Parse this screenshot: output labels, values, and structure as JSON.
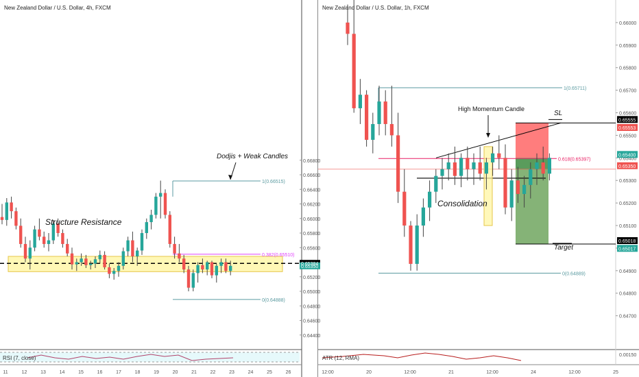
{
  "chart_data": [
    {
      "type": "candlestick",
      "title": "New Zealand Dollar / U.S. Dollar, 4h, FXCM",
      "ylim": [
        0.642,
        0.69
      ],
      "yticks": [
        "0.66800",
        "0.66600",
        "0.66400",
        "0.66200",
        "0.66000",
        "0.65800",
        "0.65600",
        "0.65400",
        "0.65200",
        "0.65000",
        "0.64800",
        "0.64600",
        "0.64400"
      ],
      "ytick_values": [
        0.668,
        0.666,
        0.664,
        0.662,
        0.66,
        0.658,
        0.656,
        0.654,
        0.652,
        0.65,
        0.648,
        0.646,
        0.644
      ],
      "x_labels": [
        "11",
        "12",
        "13",
        "14",
        "15",
        "16",
        "17",
        "18",
        "19",
        "20",
        "21",
        "22",
        "23",
        "24",
        "25",
        "26"
      ],
      "price_badges": [
        {
          "label": "0.65384",
          "value": 0.65384,
          "color": "#000000"
        },
        {
          "label": "0.65350",
          "value": 0.6535,
          "color": "#26a69a"
        }
      ],
      "fib": [
        {
          "label": "1(0.66515)",
          "value": 0.66515,
          "color": "#5a9aa0"
        },
        {
          "label": "0.382(0.65510)",
          "value": 0.6551,
          "color": "#e040fb"
        },
        {
          "label": "0(0.64888)",
          "value": 0.64888,
          "color": "#5a9aa0"
        }
      ],
      "zone": {
        "top": 0.6548,
        "bottom": 0.6527,
        "color": "#fff59d"
      },
      "level": 0.65384,
      "annotations": [
        "Dodjis + Weak Candles",
        "Structure Resistance"
      ],
      "indicator": "RSI (7, close)",
      "candles": [
        [
          0.6602,
          0.662,
          0.6592,
          0.6598
        ],
        [
          0.6598,
          0.6628,
          0.659,
          0.6622
        ],
        [
          0.6622,
          0.663,
          0.66,
          0.661
        ],
        [
          0.661,
          0.6615,
          0.6585,
          0.659
        ],
        [
          0.659,
          0.66,
          0.656,
          0.6565
        ],
        [
          0.6565,
          0.6575,
          0.654,
          0.6545
        ],
        [
          0.6545,
          0.657,
          0.653,
          0.656
        ],
        [
          0.656,
          0.659,
          0.6555,
          0.6585
        ],
        [
          0.6585,
          0.66,
          0.657,
          0.6575
        ],
        [
          0.6575,
          0.6582,
          0.656,
          0.6565
        ],
        [
          0.6565,
          0.658,
          0.6555,
          0.657
        ],
        [
          0.657,
          0.6598,
          0.6565,
          0.6593
        ],
        [
          0.6593,
          0.66,
          0.6575,
          0.658
        ],
        [
          0.658,
          0.6585,
          0.656,
          0.6565
        ],
        [
          0.6565,
          0.6572,
          0.6548,
          0.6552
        ],
        [
          0.6552,
          0.656,
          0.653,
          0.6537
        ],
        [
          0.6537,
          0.6545,
          0.6528,
          0.654
        ],
        [
          0.654,
          0.6552,
          0.6535,
          0.6545
        ],
        [
          0.6545,
          0.655,
          0.6532,
          0.6536
        ],
        [
          0.6536,
          0.6542,
          0.653,
          0.6538
        ],
        [
          0.6538,
          0.6548,
          0.6532,
          0.6544
        ],
        [
          0.6544,
          0.6556,
          0.6538,
          0.655
        ],
        [
          0.655,
          0.6555,
          0.653,
          0.6533
        ],
        [
          0.6533,
          0.6538,
          0.6518,
          0.6524
        ],
        [
          0.6524,
          0.6532,
          0.6516,
          0.6528
        ],
        [
          0.6528,
          0.654,
          0.652,
          0.6535
        ],
        [
          0.6535,
          0.656,
          0.653,
          0.6555
        ],
        [
          0.6555,
          0.6575,
          0.6548,
          0.657
        ],
        [
          0.657,
          0.6582,
          0.654,
          0.6548
        ],
        [
          0.6548,
          0.656,
          0.6535,
          0.6556
        ],
        [
          0.6556,
          0.6585,
          0.655,
          0.658
        ],
        [
          0.658,
          0.66,
          0.6572,
          0.6595
        ],
        [
          0.6595,
          0.6612,
          0.6585,
          0.6605
        ],
        [
          0.6605,
          0.6635,
          0.66,
          0.663
        ],
        [
          0.663,
          0.6652,
          0.66,
          0.6635
        ],
        [
          0.6635,
          0.664,
          0.66,
          0.6605
        ],
        [
          0.6605,
          0.661,
          0.656,
          0.6565
        ],
        [
          0.6565,
          0.6575,
          0.6545,
          0.6552
        ],
        [
          0.6552,
          0.6565,
          0.654,
          0.6545
        ],
        [
          0.6545,
          0.655,
          0.6525,
          0.653
        ],
        [
          0.653,
          0.6535,
          0.65,
          0.6505
        ],
        [
          0.6505,
          0.653,
          0.65,
          0.6525
        ],
        [
          0.6525,
          0.654,
          0.6512,
          0.6536
        ],
        [
          0.6536,
          0.6545,
          0.6525,
          0.653
        ],
        [
          0.653,
          0.6542,
          0.6522,
          0.654
        ],
        [
          0.654,
          0.6542,
          0.6518,
          0.6522
        ],
        [
          0.6522,
          0.6538,
          0.6512,
          0.6535
        ],
        [
          0.6535,
          0.6545,
          0.6525,
          0.654
        ],
        [
          0.654,
          0.6545,
          0.6525,
          0.6528
        ],
        [
          0.6528,
          0.6542,
          0.6522,
          0.6535
        ]
      ]
    },
    {
      "type": "candlestick",
      "title": "New Zealand Dollar / U.S. Dollar, 1h, FXCM",
      "ylim": [
        0.6455,
        0.661
      ],
      "yticks": [
        "0.66000",
        "0.65900",
        "0.65800",
        "0.65700",
        "0.65600",
        "0.65500",
        "0.65400",
        "0.65300",
        "0.65200",
        "0.65100",
        "0.65000",
        "0.64900",
        "0.64800",
        "0.64700"
      ],
      "ytick_values": [
        0.66,
        0.659,
        0.658,
        0.657,
        0.656,
        0.655,
        0.654,
        0.653,
        0.652,
        0.651,
        0.65,
        0.649,
        0.648,
        0.647
      ],
      "x_labels": [
        "12:00",
        "20",
        "12:00",
        "21",
        "12:00",
        "24",
        "12:00",
        "25"
      ],
      "price_badges": [
        {
          "label": "0.65555",
          "value": 0.65555,
          "color": "#000000"
        },
        {
          "label": "0.65553",
          "value": 0.65553,
          "color": "#ef5350"
        },
        {
          "label": "0.65400",
          "value": 0.654,
          "color": "#26a69a"
        },
        {
          "label": "0.65350",
          "value": 0.6535,
          "color": "#ef5350"
        },
        {
          "label": "0.65018",
          "value": 0.65018,
          "color": "#000000"
        },
        {
          "label": "0.65017",
          "value": 0.65017,
          "color": "#26a69a"
        }
      ],
      "fib": [
        {
          "label": "1(0.65711)",
          "value": 0.65711,
          "color": "#5a9aa0"
        },
        {
          "label": "0.618(0.65397)",
          "value": 0.65397,
          "color": "#e91e63"
        },
        {
          "label": "0(0.64889)",
          "value": 0.64889,
          "color": "#5a9aa0"
        }
      ],
      "position": {
        "entry": 0.654,
        "stop": 0.65555,
        "target": 0.65018
      },
      "current_price": 0.6535,
      "annotations": [
        "High Momentum Candle",
        "SL",
        "Consolidation",
        "Target"
      ],
      "indicator": "ATR (12, RMA)",
      "candles": [
        [
          0.66,
          0.6608,
          0.659,
          0.6595
        ],
        [
          0.6595,
          0.661,
          0.656,
          0.6562
        ],
        [
          0.6562,
          0.6575,
          0.6555,
          0.6568
        ],
        [
          0.6568,
          0.657,
          0.6545,
          0.6548
        ],
        [
          0.6548,
          0.656,
          0.6542,
          0.6555
        ],
        [
          0.6555,
          0.6572,
          0.655,
          0.6565
        ],
        [
          0.6565,
          0.657,
          0.655,
          0.6555
        ],
        [
          0.6555,
          0.6572,
          0.6545,
          0.655
        ],
        [
          0.655,
          0.656,
          0.652,
          0.6525
        ],
        [
          0.6525,
          0.6535,
          0.6505,
          0.651
        ],
        [
          0.651,
          0.6512,
          0.649,
          0.6493
        ],
        [
          0.6493,
          0.6515,
          0.649,
          0.651
        ],
        [
          0.651,
          0.6522,
          0.6505,
          0.6518
        ],
        [
          0.6518,
          0.653,
          0.6512,
          0.6525
        ],
        [
          0.6525,
          0.6535,
          0.652,
          0.6532
        ],
        [
          0.6532,
          0.654,
          0.6526,
          0.6535
        ],
        [
          0.6535,
          0.6542,
          0.653,
          0.6538
        ],
        [
          0.6538,
          0.6545,
          0.6528,
          0.6532
        ],
        [
          0.6532,
          0.6542,
          0.6527,
          0.654
        ],
        [
          0.654,
          0.6545,
          0.653,
          0.6535
        ],
        [
          0.6535,
          0.6542,
          0.6528,
          0.6538
        ],
        [
          0.6538,
          0.6545,
          0.653,
          0.6533
        ],
        [
          0.6533,
          0.654,
          0.6526,
          0.6538
        ],
        [
          0.6538,
          0.6545,
          0.6532,
          0.6542
        ],
        [
          0.6542,
          0.655,
          0.6535,
          0.654
        ],
        [
          0.654,
          0.6546,
          0.6515,
          0.6518
        ],
        [
          0.6518,
          0.6535,
          0.6512,
          0.653
        ],
        [
          0.653,
          0.6536,
          0.652,
          0.6524
        ],
        [
          0.6524,
          0.6532,
          0.6518,
          0.6528
        ],
        [
          0.6528,
          0.6538,
          0.6522,
          0.6535
        ],
        [
          0.6535,
          0.6542,
          0.6528,
          0.6538
        ],
        [
          0.6538,
          0.6545,
          0.653,
          0.6533
        ],
        [
          0.6533,
          0.6542,
          0.653,
          0.654
        ]
      ]
    }
  ]
}
